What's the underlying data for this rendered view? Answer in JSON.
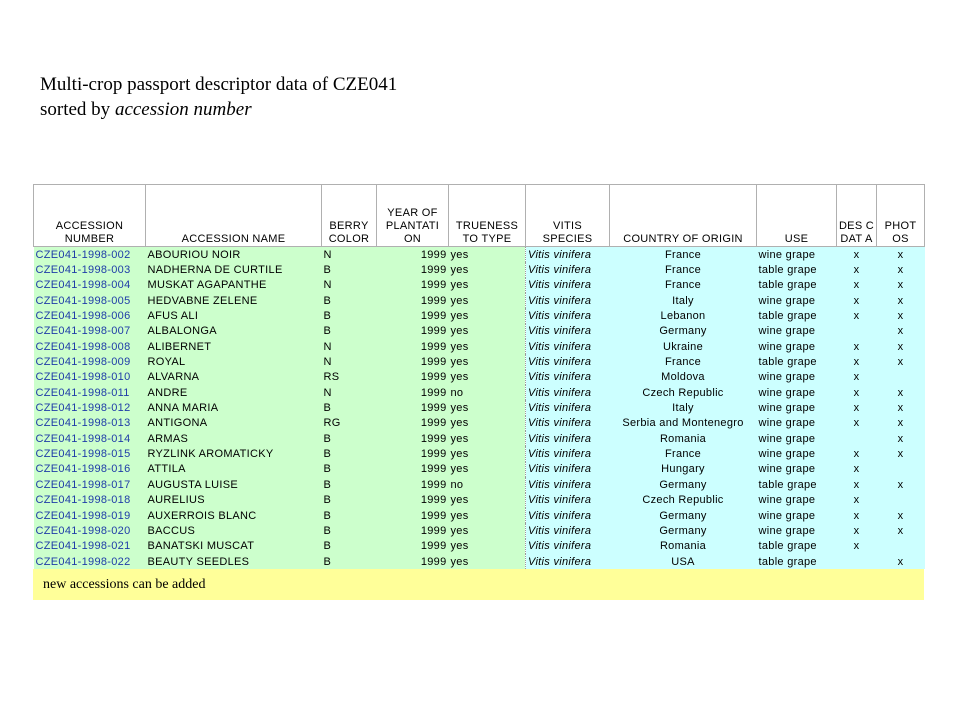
{
  "title": {
    "line1": "Multi-crop passport descriptor data of CZE041",
    "line2_prefix": "sorted by ",
    "line2_emph": "accession number"
  },
  "headers": {
    "accession_number": "ACCESSION NUMBER",
    "accession_name": "ACCESSION NAME",
    "berry_color": "BERRY COLOR",
    "year": "YEAR OF PLANTATI ON",
    "trueness": "TRUENESS TO TYPE",
    "vitis_species": "VITIS SPECIES",
    "country": "COUNTRY OF ORIGIN",
    "use": "USE",
    "desc_data": "DES C DAT A",
    "photos": "PHOT OS"
  },
  "rows": [
    [
      "CZE041-1998-002",
      "ABOURIOU NOIR",
      "N",
      "1999",
      "yes",
      "Vitis vinifera",
      "France",
      "wine grape",
      "x",
      "x"
    ],
    [
      "CZE041-1998-003",
      "NADHERNA DE CURTILE",
      "B",
      "1999",
      "yes",
      "Vitis vinifera",
      "France",
      "table grape",
      "x",
      "x"
    ],
    [
      "CZE041-1998-004",
      "MUSKAT AGAPANTHE",
      "N",
      "1999",
      "yes",
      "Vitis vinifera",
      "France",
      "table grape",
      "x",
      "x"
    ],
    [
      "CZE041-1998-005",
      "HEDVABNE ZELENE",
      "B",
      "1999",
      "yes",
      "Vitis vinifera",
      "Italy",
      "wine grape",
      "x",
      "x"
    ],
    [
      "CZE041-1998-006",
      "AFUS ALI",
      "B",
      "1999",
      "yes",
      "Vitis vinifera",
      "Lebanon",
      "table grape",
      "x",
      "x"
    ],
    [
      "CZE041-1998-007",
      "ALBALONGA",
      "B",
      "1999",
      "yes",
      "Vitis vinifera",
      "Germany",
      "wine grape",
      "",
      "x"
    ],
    [
      "CZE041-1998-008",
      "ALIBERNET",
      "N",
      "1999",
      "yes",
      "Vitis vinifera",
      "Ukraine",
      "wine grape",
      "x",
      "x"
    ],
    [
      "CZE041-1998-009",
      "ROYAL",
      "N",
      "1999",
      "yes",
      "Vitis vinifera",
      "France",
      "table grape",
      "x",
      "x"
    ],
    [
      "CZE041-1998-010",
      "ALVARNA",
      "RS",
      "1999",
      "yes",
      "Vitis vinifera",
      "Moldova",
      "wine grape",
      "x",
      ""
    ],
    [
      "CZE041-1998-011",
      "ANDRE",
      "N",
      "1999",
      "no",
      "Vitis vinifera",
      "Czech Republic",
      "wine grape",
      "x",
      "x"
    ],
    [
      "CZE041-1998-012",
      "ANNA MARIA",
      "B",
      "1999",
      "yes",
      "Vitis vinifera",
      "Italy",
      "wine grape",
      "x",
      "x"
    ],
    [
      "CZE041-1998-013",
      "ANTIGONA",
      "RG",
      "1999",
      "yes",
      "Vitis vinifera",
      "Serbia and Montenegro",
      "wine grape",
      "x",
      "x"
    ],
    [
      "CZE041-1998-014",
      "ARMAS",
      "B",
      "1999",
      "yes",
      "Vitis vinifera",
      "Romania",
      "wine grape",
      "",
      "x"
    ],
    [
      "CZE041-1998-015",
      "RYZLINK AROMATICKY",
      "B",
      "1999",
      "yes",
      "Vitis vinifera",
      "France",
      "wine grape",
      "x",
      "x"
    ],
    [
      "CZE041-1998-016",
      "ATTILA",
      "B",
      "1999",
      "yes",
      "Vitis vinifera",
      "Hungary",
      "wine grape",
      "x",
      ""
    ],
    [
      "CZE041-1998-017",
      "AUGUSTA LUISE",
      "B",
      "1999",
      "no",
      "Vitis vinifera",
      "Germany",
      "table grape",
      "x",
      "x"
    ],
    [
      "CZE041-1998-018",
      "AURELIUS",
      "B",
      "1999",
      "yes",
      "Vitis vinifera",
      "Czech Republic",
      "wine grape",
      "x",
      ""
    ],
    [
      "CZE041-1998-019",
      "AUXERROIS BLANC",
      "B",
      "1999",
      "yes",
      "Vitis vinifera",
      "Germany",
      "wine grape",
      "x",
      "x"
    ],
    [
      "CZE041-1998-020",
      "BACCUS",
      "B",
      "1999",
      "yes",
      "Vitis vinifera",
      "Germany",
      "wine grape",
      "x",
      "x"
    ],
    [
      "CZE041-1998-021",
      "BANATSKI MUSCAT",
      "B",
      "1999",
      "yes",
      "Vitis vinifera",
      "Romania",
      "table grape",
      "x",
      ""
    ],
    [
      "CZE041-1998-022",
      "BEAUTY SEEDLES",
      "B",
      "1999",
      "yes",
      "Vitis vinifera",
      "USA",
      "table grape",
      "",
      "x"
    ]
  ],
  "footer": "new accessions can be added",
  "colors": {
    "left_block": "#ccffcc",
    "right_block": "#ccffff",
    "footer": "#ffff99",
    "accession_link": "#1f3ca8"
  }
}
